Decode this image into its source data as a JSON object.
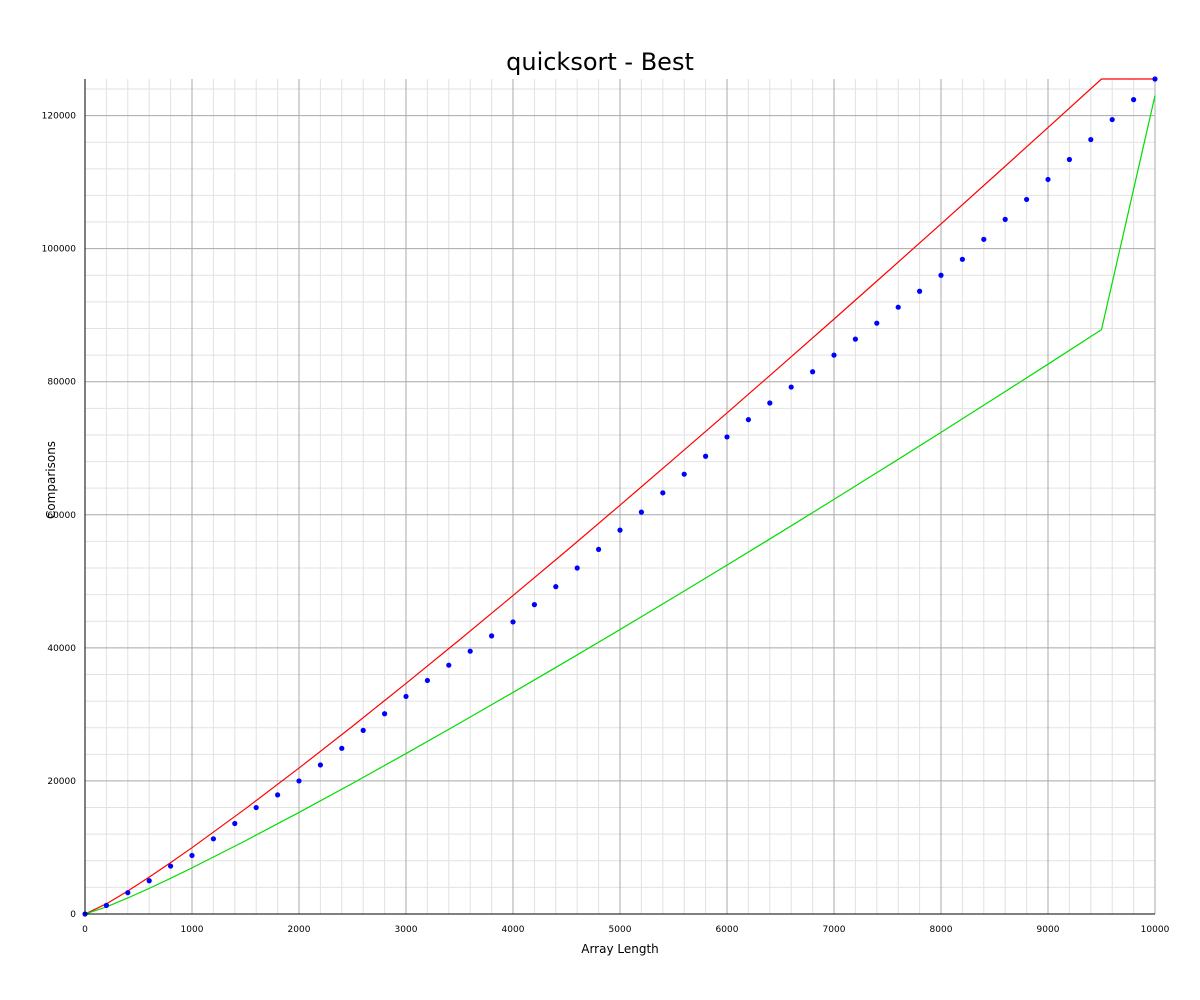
{
  "chart_data": {
    "type": "scatter",
    "title": "quicksort - Best",
    "xlabel": "Array Length",
    "ylabel": "Comparisons",
    "xlim": [
      0,
      10000
    ],
    "ylim": [
      0,
      125500
    ],
    "grid": true,
    "x_ticks": [
      0,
      1000,
      2000,
      3000,
      4000,
      5000,
      6000,
      7000,
      8000,
      9000,
      10000
    ],
    "y_ticks": [
      0,
      20000,
      40000,
      60000,
      80000,
      100000,
      120000
    ],
    "series": [
      {
        "type": "scatter",
        "color": "#0000ff",
        "x": [
          0,
          200,
          400,
          600,
          800,
          1000,
          1200,
          1400,
          1600,
          1800,
          2000,
          2200,
          2400,
          2600,
          2800,
          3000,
          3200,
          3400,
          3600,
          3800,
          4000,
          4200,
          4400,
          4600,
          4800,
          5000,
          5200,
          5400,
          5600,
          5800,
          6000,
          6200,
          6400,
          6600,
          6800,
          7000,
          7200,
          7400,
          7600,
          7800,
          8000,
          8200,
          8400,
          8600,
          8800,
          9000,
          9200,
          9400,
          9600,
          9800,
          10000
        ],
        "y": [
          0,
          1300,
          3200,
          5000,
          7200,
          8800,
          11300,
          13600,
          16000,
          17900,
          20000,
          22400,
          24900,
          27600,
          30100,
          32700,
          35100,
          37400,
          39500,
          41800,
          43900,
          46500,
          49200,
          52000,
          54800,
          57700,
          60400,
          63300,
          66100,
          68800,
          71700,
          74300,
          76800,
          79200,
          81500,
          84000,
          86400,
          88800,
          91200,
          93600,
          96000,
          98400,
          101400,
          104400,
          107400,
          110400,
          113400,
          116400,
          119400,
          122400,
          125500
        ]
      },
      {
        "type": "line",
        "color": "#ff0000",
        "x": [
          0,
          200,
          400,
          600,
          800,
          1000,
          1500,
          2000,
          2500,
          3000,
          3500,
          4000,
          4500,
          5000,
          5500,
          6000,
          6500,
          7000,
          7500,
          8000,
          8500,
          9000,
          9500,
          10000
        ],
        "y": [
          0,
          1529,
          3458,
          5537,
          7715,
          9966,
          15826,
          21932,
          28221,
          34652,
          41203,
          47863,
          54594,
          61439,
          68356,
          75312,
          82330,
          89408,
          96548,
          103723,
          110939,
          118202,
          125500,
          125500
        ]
      },
      {
        "type": "line",
        "color": "#00dd00",
        "x": [
          0,
          200,
          400,
          600,
          800,
          1000,
          1500,
          2000,
          2500,
          3000,
          3500,
          4000,
          4500,
          5000,
          5500,
          6000,
          6500,
          7000,
          7500,
          8000,
          8500,
          9000,
          9500,
          10000
        ],
        "y": [
          0,
          1064,
          2406,
          3853,
          5368,
          6934,
          11012,
          15261,
          19637,
          24111,
          28671,
          33304,
          38000,
          42750,
          47575,
          52435,
          57348,
          62312,
          67326,
          72387,
          77491,
          82636,
          87823,
          123000
        ]
      }
    ]
  }
}
